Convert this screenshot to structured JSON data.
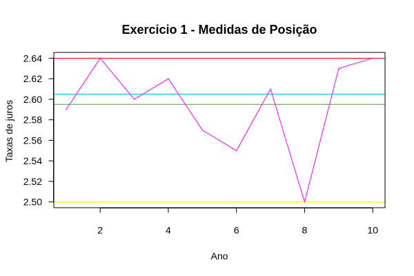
{
  "chart_data": {
    "type": "line",
    "title": "Exercicio 1 - Medidas de Posição",
    "xlabel": "Ano",
    "ylabel": "Taxas de juros",
    "x": [
      1,
      2,
      3,
      4,
      5,
      6,
      7,
      8,
      9,
      10
    ],
    "series": [
      {
        "values": [
          2.59,
          2.64,
          2.6,
          2.62,
          2.57,
          2.55,
          2.61,
          2.5,
          2.63,
          2.64
        ],
        "color": "#ff00ff"
      }
    ],
    "reference_lines": [
      {
        "y": 2.64,
        "color": "#ff0000"
      },
      {
        "y": 2.605,
        "color": "#00bfff"
      },
      {
        "y": 2.595,
        "color": "#00cc00"
      },
      {
        "y": 2.5,
        "color": "#ffff00"
      }
    ],
    "xlim": [
      0.64,
      10.36
    ],
    "ylim": [
      2.4944,
      2.6456
    ],
    "x_ticks": [
      "2",
      "4",
      "6",
      "8",
      "10"
    ],
    "y_ticks": [
      "2.50",
      "2.52",
      "2.54",
      "2.56",
      "2.58",
      "2.60",
      "2.62",
      "2.64"
    ],
    "grid": false,
    "legend": "none"
  }
}
